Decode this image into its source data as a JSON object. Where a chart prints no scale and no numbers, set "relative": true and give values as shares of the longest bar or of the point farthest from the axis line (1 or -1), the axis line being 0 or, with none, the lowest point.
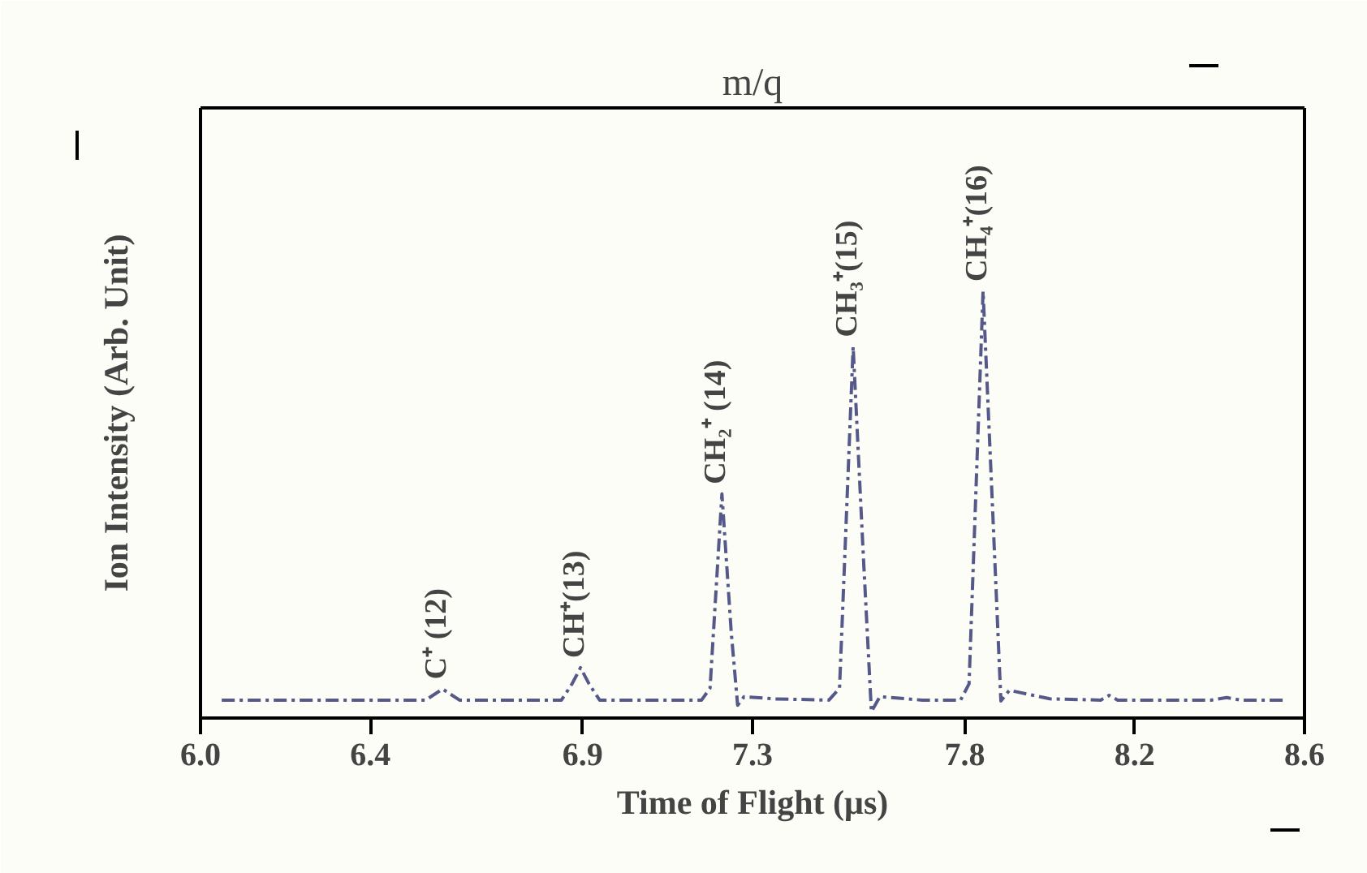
{
  "chart_data": {
    "type": "line",
    "relative": true,
    "xlabel": "Time of Flight (μs)",
    "ylabel": "Ion Intensity (Arb. Unit)",
    "x2label": "m/q",
    "xlim": [
      6.0,
      8.6
    ],
    "xticks": [
      {
        "value": 6.0,
        "label": "6.0"
      },
      {
        "value": 6.4,
        "label": "6.4"
      },
      {
        "value": 6.9,
        "label": "6.9"
      },
      {
        "value": 7.3,
        "label": "7.3"
      },
      {
        "value": 7.8,
        "label": "7.8"
      },
      {
        "value": 8.2,
        "label": "8.2"
      },
      {
        "value": 8.6,
        "label": "8.6"
      }
    ],
    "grid": false,
    "line_style": "dashed",
    "tick_labels": "x",
    "series": [
      {
        "color": "#55598a",
        "x": [
          6.05,
          6.53,
          6.57,
          6.61,
          6.85,
          6.875,
          6.895,
          6.915,
          6.94,
          7.18,
          7.2,
          7.228,
          7.25,
          7.265,
          7.28,
          7.35,
          7.48,
          7.505,
          7.537,
          7.56,
          7.58,
          7.6,
          7.7,
          7.79,
          7.81,
          7.843,
          7.865,
          7.885,
          7.905,
          8.0,
          8.12,
          8.14,
          8.16,
          8.38,
          8.417,
          8.45,
          8.55
        ],
        "values": [
          0.042,
          0.042,
          0.068,
          0.042,
          0.042,
          0.08,
          0.118,
          0.08,
          0.042,
          0.042,
          0.07,
          0.525,
          0.2,
          0.03,
          0.05,
          0.045,
          0.042,
          0.07,
          0.87,
          0.4,
          0.015,
          0.05,
          0.042,
          0.042,
          0.08,
          1.0,
          0.5,
          0.04,
          0.065,
          0.045,
          0.042,
          0.053,
          0.042,
          0.042,
          0.048,
          0.042,
          0.042
        ]
      }
    ],
    "annotations": [
      {
        "text": "C⁺ (12)",
        "x": 6.57,
        "y": 0.068
      },
      {
        "text": "CH⁺(13)",
        "x": 6.895,
        "y": 0.118
      },
      {
        "text": "CH₂⁺ (14)",
        "x": 7.228,
        "y": 0.525
      },
      {
        "text": "CH₃⁺(15)",
        "x": 7.537,
        "y": 0.87
      },
      {
        "text": "CH₄⁺(16)",
        "x": 7.843,
        "y": 1.0
      }
    ]
  }
}
